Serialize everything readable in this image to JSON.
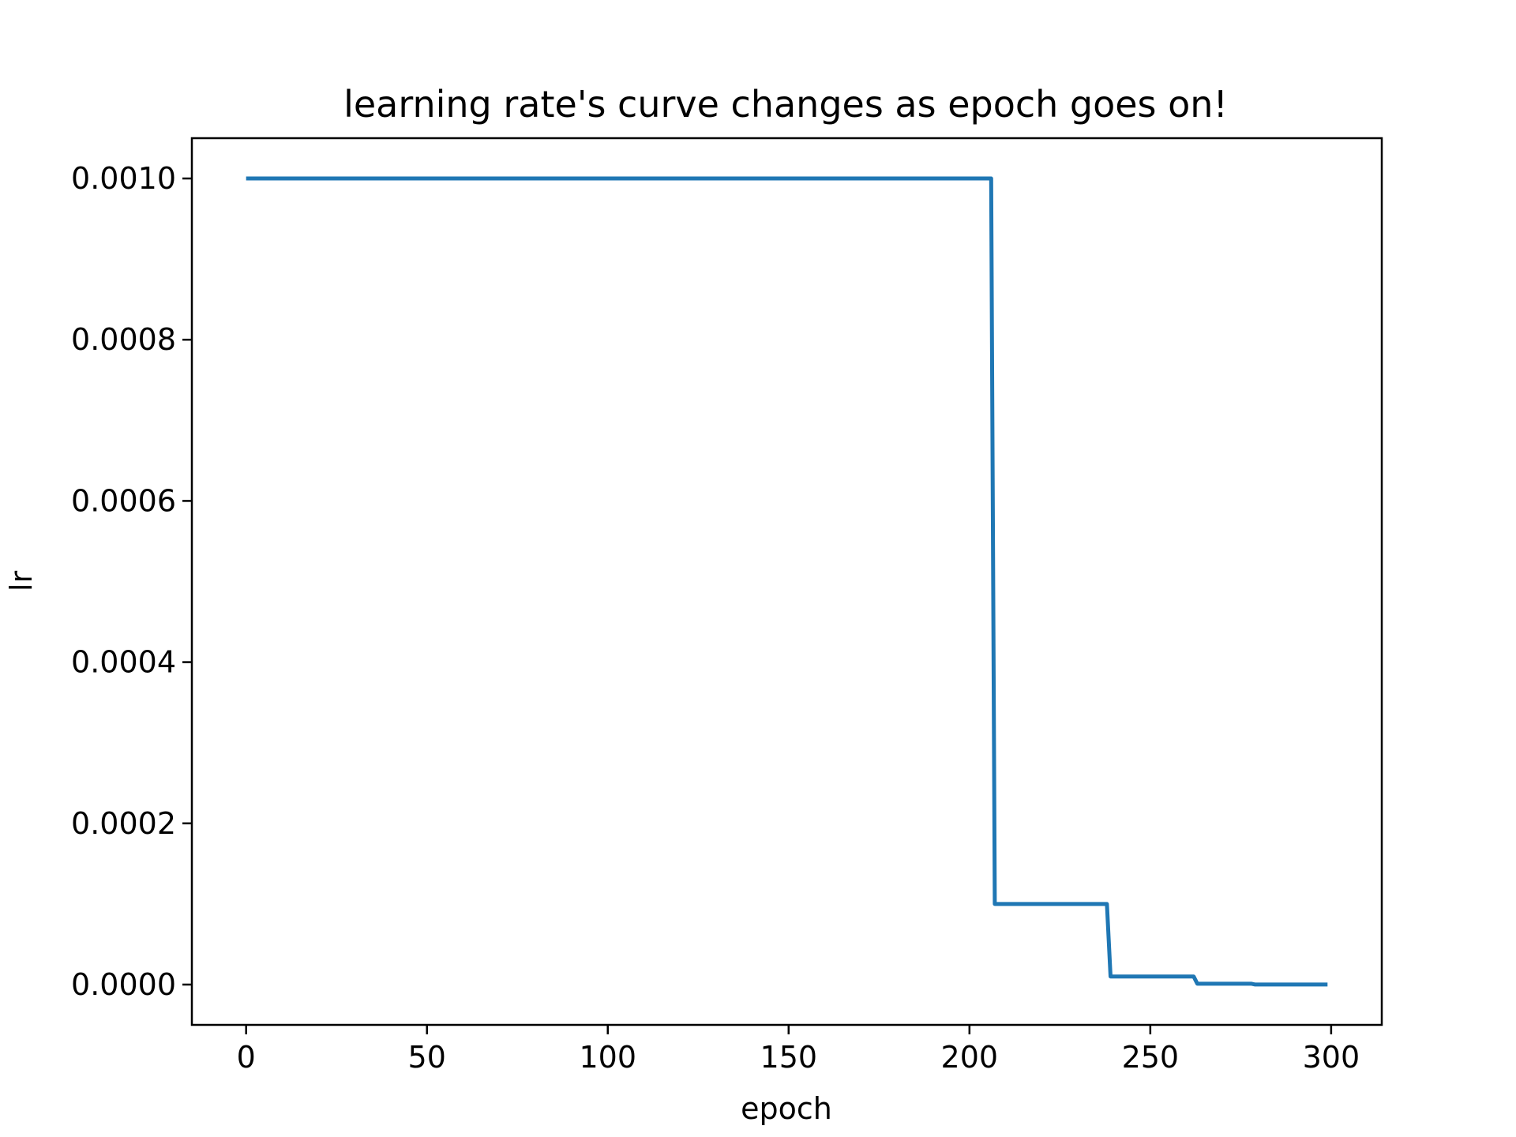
{
  "chart_data": {
    "type": "line",
    "title": "learning rate's curve changes as epoch goes on!",
    "xlabel": "epoch",
    "ylabel": "lr",
    "xlim": [
      -15,
      314
    ],
    "ylim": [
      -5e-05,
      0.00105
    ],
    "xticks": [
      0,
      50,
      100,
      150,
      200,
      250,
      300
    ],
    "xtick_labels": [
      "0",
      "50",
      "100",
      "150",
      "200",
      "250",
      "300"
    ],
    "yticks": [
      0.0,
      0.0002,
      0.0004,
      0.0006,
      0.0008,
      0.001
    ],
    "ytick_labels": [
      "0.0000",
      "0.0002",
      "0.0004",
      "0.0006",
      "0.0008",
      "0.0010"
    ],
    "grid": false,
    "series": [
      {
        "color": "#1f77b4",
        "x": [
          0,
          206,
          207,
          238,
          239,
          262,
          263,
          278,
          279,
          299
        ],
        "y": [
          0.001,
          0.001,
          0.0001,
          0.0001,
          1e-05,
          1e-05,
          1e-06,
          1e-06,
          1e-07,
          1e-07
        ]
      }
    ]
  }
}
